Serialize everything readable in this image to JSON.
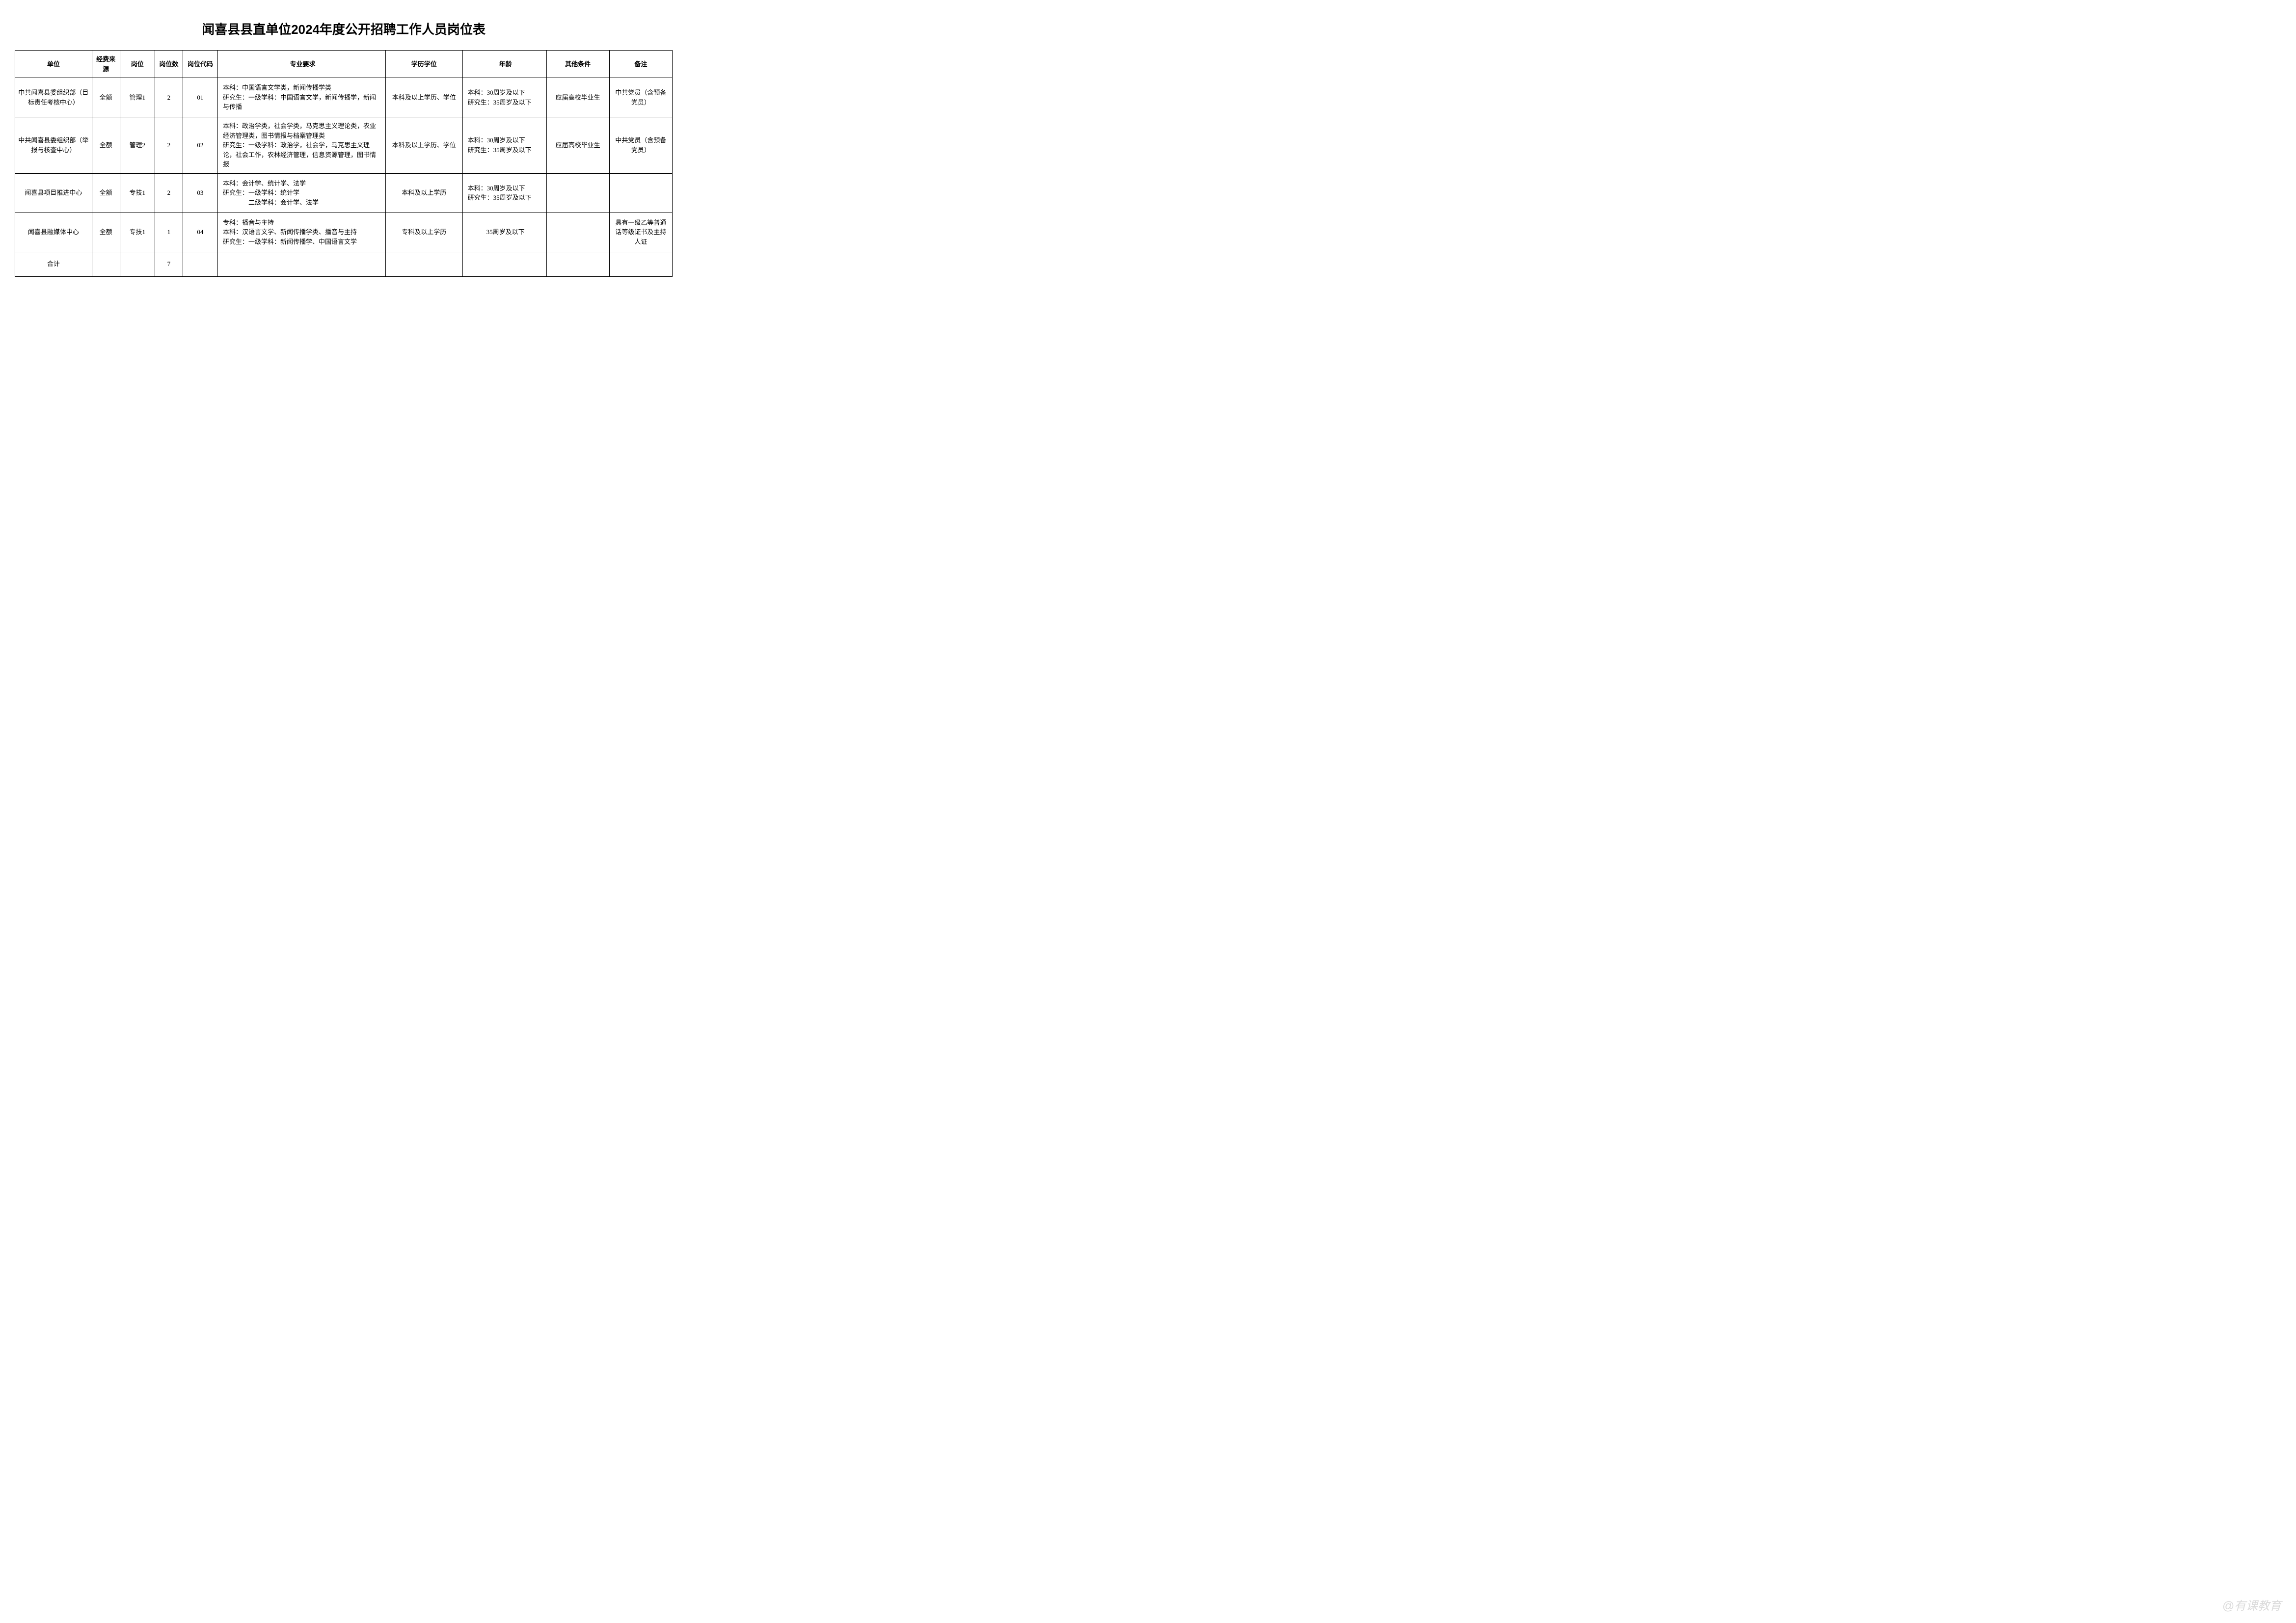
{
  "title": "闻喜县县直单位2024年度公开招聘工作人员岗位表",
  "headers": {
    "unit": "单位",
    "fund": "经费来源",
    "post": "岗位",
    "count": "岗位数",
    "code": "岗位代码",
    "major": "专业要求",
    "edu": "学历学位",
    "age": "年龄",
    "other": "其他条件",
    "remark": "备注"
  },
  "rows": [
    {
      "unit": "中共闻喜县委组织部（目标责任考核中心）",
      "fund": "全额",
      "post": "管理1",
      "count": "2",
      "code": "01",
      "major": "本科：中国语言文学类，新闻传播学类\n研究生：一级学科：中国语言文学，新闻传播学，新闻与传播",
      "edu": "本科及以上学历、学位",
      "age": "本科：30周岁及以下\n研究生：35周岁及以下",
      "other": "应届高校毕业生",
      "remark": "中共党员（含预备党员）"
    },
    {
      "unit": "中共闻喜县委组织部（举报与核查中心）",
      "fund": "全额",
      "post": "管理2",
      "count": "2",
      "code": "02",
      "major": "本科：政治学类，社会学类，马克思主义理论类，农业经济管理类，图书情报与档案管理类\n研究生：一级学科：政治学，社会学，马克思主义理论，社会工作，农林经济管理，信息资源管理，图书情报",
      "edu": "本科及以上学历、学位",
      "age": "本科：30周岁及以下\n研究生：35周岁及以下",
      "other": "应届高校毕业生",
      "remark": "中共党员（含预备党员）"
    },
    {
      "unit": "闻喜县项目推进中心",
      "fund": "全额",
      "post": "专技1",
      "count": "2",
      "code": "03",
      "major": "本科：会计学、统计学、法学\n研究生：一级学科：统计学\n　　　　二级学科：会计学、法学",
      "edu": "本科及以上学历",
      "age": "本科：30周岁及以下\n研究生：35周岁及以下",
      "other": "",
      "remark": ""
    },
    {
      "unit": "闻喜县融媒体中心",
      "fund": "全额",
      "post": "专技1",
      "count": "1",
      "code": "04",
      "major": "专科：播音与主持\n本科：汉语言文学、新闻传播学类、播音与主持\n研究生：一级学科：新闻传播学、中国语言文学",
      "edu": "专科及以上学历",
      "age": "35周岁及以下",
      "other": "",
      "remark": "具有一级乙等普通话等级证书及主持人证"
    }
  ],
  "total": {
    "label": "合计",
    "count": "7"
  },
  "watermark": "@有课教育",
  "styles": {
    "title_fontsize": 26,
    "cell_fontsize": 13,
    "border_color": "#000000",
    "background_color": "#ffffff",
    "watermark_color": "rgba(150,150,150,0.35)"
  }
}
